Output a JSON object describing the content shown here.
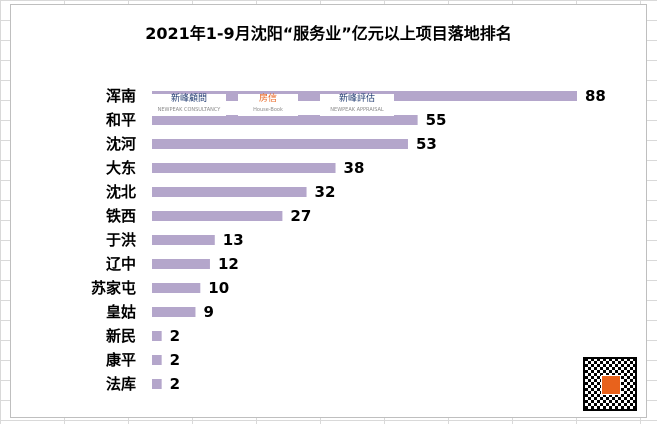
{
  "chart_data": {
    "type": "bar",
    "orientation": "horizontal",
    "title": "2021年1-9月沈阳“服务业”亿元以上项目落地排名",
    "categories": [
      "浑南",
      "和平",
      "沈河",
      "大东",
      "沈北",
      "铁西",
      "于洪",
      "辽中",
      "苏家屯",
      "皇姑",
      "新民",
      "康平",
      "法库"
    ],
    "values": [
      88,
      55,
      53,
      38,
      32,
      27,
      13,
      12,
      10,
      9,
      2,
      2,
      2
    ],
    "bar_color": "#b4a6cb",
    "grid": false,
    "legend": "none"
  },
  "watermarks": {
    "logo_left": "新峰顧問",
    "logo_left_sub": "NEWPEAK CONSULTANCY",
    "logo_mid": "房信",
    "logo_mid_sub": "House-Book",
    "logo_right": "新峰評估",
    "logo_right_sub": "NEWPEAK APPRAISAL"
  }
}
